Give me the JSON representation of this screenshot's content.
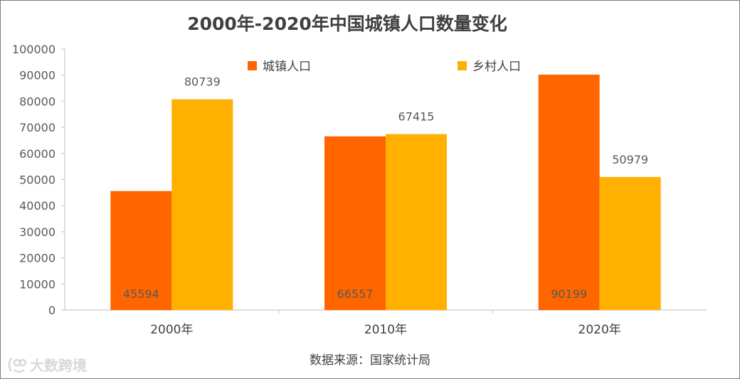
{
  "chart_data": {
    "type": "bar",
    "title": "2000年-2020年中国城镇人口数量变化",
    "categories": [
      "2000年",
      "2010年",
      "2020年"
    ],
    "series": [
      {
        "name": "城镇人口",
        "color": "#ff6600",
        "values": [
          45594,
          66557,
          90199
        ],
        "label_position": "inside-bottom"
      },
      {
        "name": "乡村人口",
        "color": "#ffb000",
        "values": [
          80739,
          67415,
          50979
        ],
        "label_position": "above"
      }
    ],
    "ylim": [
      0,
      100000
    ],
    "yticks": [
      0,
      10000,
      20000,
      30000,
      40000,
      50000,
      60000,
      70000,
      80000,
      90000,
      100000
    ],
    "xlabel": "",
    "ylabel": "",
    "legend": "top-center",
    "grid": false
  },
  "source_note": "数据来源：国家统计局",
  "watermark": {
    "text": "大数跨境",
    "icon": "brand-logo-icon"
  }
}
